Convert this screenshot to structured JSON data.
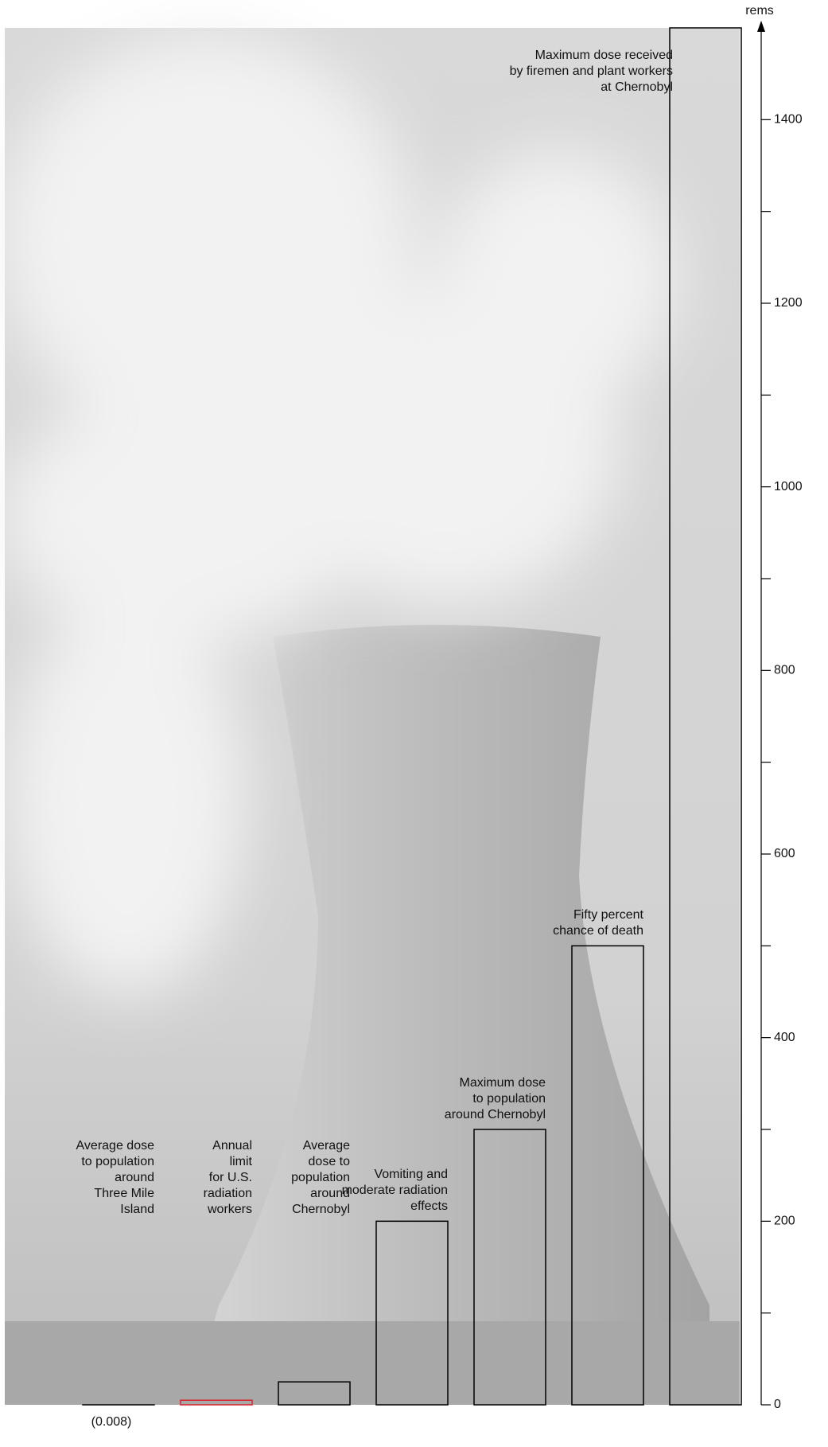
{
  "chart_data": {
    "type": "bar",
    "y_label": "rems",
    "categories": [
      "Average dose\nto population\naround\nThree Mile\nIsland",
      "Annual\nlimit\nfor U.S.\nradiation\nworkers",
      "Average\ndose to\npopulation\naround\nChernobyl",
      "Vomiting and\nmoderate radiation\neffects",
      "Maximum dose\nto population\naround Chernobyl",
      "Fifty percent\nchance of death",
      "Maximum dose received\nby firemen and plant workers\nat Chernobyl"
    ],
    "values": [
      0.008,
      5,
      25,
      200,
      300,
      500,
      1500
    ],
    "value_labels": [
      "(0.008)",
      null,
      null,
      null,
      null,
      null,
      null
    ],
    "colors": [
      "#000000",
      "#d8232a",
      "#000000",
      "#000000",
      "#000000",
      "#000000",
      "#000000"
    ],
    "ylim": [
      0,
      1500
    ],
    "yticks": [
      0,
      200,
      400,
      600,
      800,
      1000,
      1200,
      1400
    ],
    "minor_yticks": [
      100,
      300,
      500,
      700,
      900,
      1100,
      1300
    ]
  }
}
